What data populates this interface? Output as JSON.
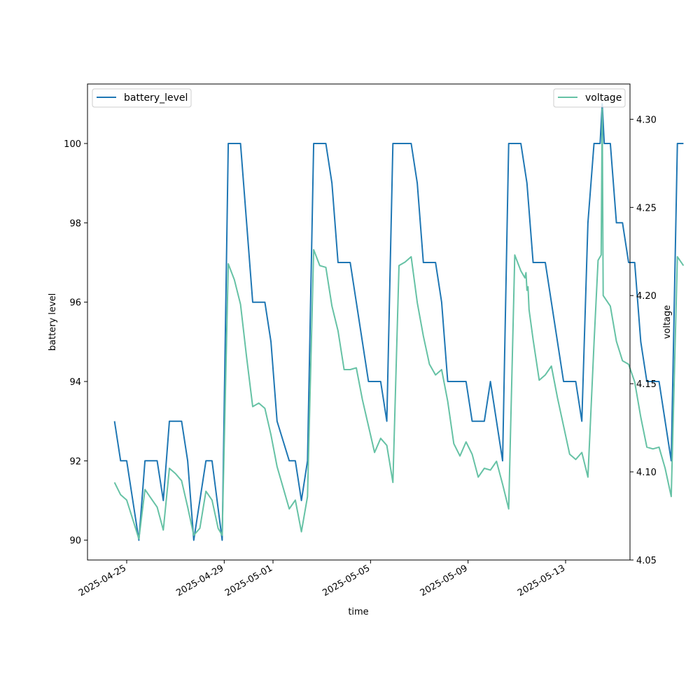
{
  "chart_data": {
    "type": "line",
    "xlabel": "time",
    "ylabel_left": "battery level",
    "ylabel_right": "voltage",
    "x_ticks": [
      "2025-04-25",
      "2025-04-29",
      "2025-05-01",
      "2025-05-05",
      "2025-05-09",
      "2025-05-13"
    ],
    "ylim_left": [
      89.5,
      101.5
    ],
    "y_ticks_left": [
      90,
      92,
      94,
      96,
      98,
      100
    ],
    "ylim_right": [
      4.05,
      4.32
    ],
    "y_ticks_right": [
      4.05,
      4.1,
      4.15,
      4.2,
      4.25,
      4.3
    ],
    "y_tick_labels_right": [
      "4.05",
      "4.10",
      "4.15",
      "4.20",
      "4.25",
      "4.30"
    ],
    "grid": false,
    "series": [
      {
        "name": "battery_level",
        "axis": "left",
        "color": "#1f77b4",
        "legend_position": "upper-left",
        "points": [
          [
            "2025-04-24 12:00",
            93
          ],
          [
            "2025-04-24 18:00",
            92
          ],
          [
            "2025-04-25 00:00",
            92
          ],
          [
            "2025-04-25 06:00",
            91
          ],
          [
            "2025-04-25 12:00",
            90
          ],
          [
            "2025-04-25 18:00",
            92
          ],
          [
            "2025-04-26 00:00",
            92
          ],
          [
            "2025-04-26 06:00",
            92
          ],
          [
            "2025-04-26 12:00",
            91
          ],
          [
            "2025-04-26 18:00",
            93
          ],
          [
            "2025-04-27 00:00",
            93
          ],
          [
            "2025-04-27 06:00",
            93
          ],
          [
            "2025-04-27 12:00",
            92
          ],
          [
            "2025-04-27 18:00",
            90
          ],
          [
            "2025-04-28 00:00",
            91
          ],
          [
            "2025-04-28 06:00",
            92
          ],
          [
            "2025-04-28 12:00",
            92
          ],
          [
            "2025-04-28 22:00",
            90
          ],
          [
            "2025-04-29 04:00",
            100
          ],
          [
            "2025-04-29 10:00",
            100
          ],
          [
            "2025-04-29 16:00",
            100
          ],
          [
            "2025-04-29 22:00",
            98
          ],
          [
            "2025-04-30 04:00",
            96
          ],
          [
            "2025-04-30 10:00",
            96
          ],
          [
            "2025-04-30 16:00",
            96
          ],
          [
            "2025-04-30 22:00",
            95
          ],
          [
            "2025-05-01 04:00",
            93
          ],
          [
            "2025-05-01 10:00",
            92.5
          ],
          [
            "2025-05-01 16:00",
            92
          ],
          [
            "2025-05-01 22:00",
            92
          ],
          [
            "2025-05-02 04:00",
            91
          ],
          [
            "2025-05-02 10:00",
            92
          ],
          [
            "2025-05-02 16:00",
            100
          ],
          [
            "2025-05-02 22:00",
            100
          ],
          [
            "2025-05-03 04:00",
            100
          ],
          [
            "2025-05-03 10:00",
            99
          ],
          [
            "2025-05-03 16:00",
            97
          ],
          [
            "2025-05-03 22:00",
            97
          ],
          [
            "2025-05-04 04:00",
            97
          ],
          [
            "2025-05-04 10:00",
            96
          ],
          [
            "2025-05-04 16:00",
            95
          ],
          [
            "2025-05-04 22:00",
            94
          ],
          [
            "2025-05-05 04:00",
            94
          ],
          [
            "2025-05-05 10:00",
            94
          ],
          [
            "2025-05-05 16:00",
            93
          ],
          [
            "2025-05-05 22:00",
            100
          ],
          [
            "2025-05-06 04:00",
            100
          ],
          [
            "2025-05-06 10:00",
            100
          ],
          [
            "2025-05-06 16:00",
            100
          ],
          [
            "2025-05-06 22:00",
            99
          ],
          [
            "2025-05-07 04:00",
            97
          ],
          [
            "2025-05-07 10:00",
            97
          ],
          [
            "2025-05-07 16:00",
            97
          ],
          [
            "2025-05-07 22:00",
            96
          ],
          [
            "2025-05-08 04:00",
            94
          ],
          [
            "2025-05-08 10:00",
            94
          ],
          [
            "2025-05-08 16:00",
            94
          ],
          [
            "2025-05-08 22:00",
            94
          ],
          [
            "2025-05-09 04:00",
            93
          ],
          [
            "2025-05-09 10:00",
            93
          ],
          [
            "2025-05-09 16:00",
            93
          ],
          [
            "2025-05-09 22:00",
            94
          ],
          [
            "2025-05-10 04:00",
            93
          ],
          [
            "2025-05-10 10:00",
            92
          ],
          [
            "2025-05-10 16:00",
            100
          ],
          [
            "2025-05-10 22:00",
            100
          ],
          [
            "2025-05-11 04:00",
            100
          ],
          [
            "2025-05-11 10:00",
            99
          ],
          [
            "2025-05-11 16:00",
            97
          ],
          [
            "2025-05-11 22:00",
            97
          ],
          [
            "2025-05-12 04:00",
            97
          ],
          [
            "2025-05-12 10:00",
            96
          ],
          [
            "2025-05-12 16:00",
            95
          ],
          [
            "2025-05-12 22:00",
            94
          ],
          [
            "2025-05-13 04:00",
            94
          ],
          [
            "2025-05-13 10:00",
            94
          ],
          [
            "2025-05-13 16:00",
            93
          ],
          [
            "2025-05-13 22:00",
            98
          ],
          [
            "2025-05-14 04:00",
            100
          ],
          [
            "2025-05-14 10:00",
            100
          ],
          [
            "2025-05-14 12:00",
            101
          ],
          [
            "2025-05-14 14:00",
            100
          ],
          [
            "2025-05-14 20:00",
            100
          ],
          [
            "2025-05-15 02:00",
            98
          ],
          [
            "2025-05-15 08:00",
            98
          ],
          [
            "2025-05-15 14:00",
            97
          ],
          [
            "2025-05-15 20:00",
            97
          ],
          [
            "2025-05-16 02:00",
            95
          ],
          [
            "2025-05-16 08:00",
            94
          ],
          [
            "2025-05-16 14:00",
            94
          ],
          [
            "2025-05-16 20:00",
            94
          ],
          [
            "2025-05-17 02:00",
            93
          ],
          [
            "2025-05-17 08:00",
            92
          ],
          [
            "2025-05-17 14:00",
            100
          ],
          [
            "2025-05-17 20:00",
            100
          ]
        ]
      },
      {
        "name": "voltage",
        "axis": "right",
        "color": "#66c2a5",
        "legend_position": "upper-right",
        "points": [
          [
            "2025-04-24 12:00",
            4.094
          ],
          [
            "2025-04-24 18:00",
            4.087
          ],
          [
            "2025-04-25 00:00",
            4.084
          ],
          [
            "2025-04-25 06:00",
            4.073
          ],
          [
            "2025-04-25 12:00",
            4.062
          ],
          [
            "2025-04-25 18:00",
            4.09
          ],
          [
            "2025-04-26 00:00",
            4.085
          ],
          [
            "2025-04-26 06:00",
            4.08
          ],
          [
            "2025-04-26 12:00",
            4.067
          ],
          [
            "2025-04-26 18:00",
            4.102
          ],
          [
            "2025-04-27 00:00",
            4.099
          ],
          [
            "2025-04-27 06:00",
            4.095
          ],
          [
            "2025-04-27 12:00",
            4.08
          ],
          [
            "2025-04-27 18:00",
            4.064
          ],
          [
            "2025-04-28 00:00",
            4.068
          ],
          [
            "2025-04-28 06:00",
            4.089
          ],
          [
            "2025-04-28 12:00",
            4.084
          ],
          [
            "2025-04-28 18:00",
            4.068
          ],
          [
            "2025-04-28 22:00",
            4.064
          ],
          [
            "2025-04-29 04:00",
            4.218
          ],
          [
            "2025-04-29 10:00",
            4.209
          ],
          [
            "2025-04-29 16:00",
            4.195
          ],
          [
            "2025-04-29 22:00",
            4.165
          ],
          [
            "2025-04-30 04:00",
            4.137
          ],
          [
            "2025-04-30 10:00",
            4.139
          ],
          [
            "2025-04-30 16:00",
            4.136
          ],
          [
            "2025-04-30 22:00",
            4.121
          ],
          [
            "2025-05-01 04:00",
            4.103
          ],
          [
            "2025-05-01 10:00",
            4.091
          ],
          [
            "2025-05-01 16:00",
            4.079
          ],
          [
            "2025-05-01 22:00",
            4.084
          ],
          [
            "2025-05-02 04:00",
            4.066
          ],
          [
            "2025-05-02 10:00",
            4.086
          ],
          [
            "2025-05-02 16:00",
            4.226
          ],
          [
            "2025-05-02 22:00",
            4.217
          ],
          [
            "2025-05-03 04:00",
            4.216
          ],
          [
            "2025-05-03 10:00",
            4.194
          ],
          [
            "2025-05-03 16:00",
            4.18
          ],
          [
            "2025-05-03 22:00",
            4.158
          ],
          [
            "2025-05-04 04:00",
            4.158
          ],
          [
            "2025-05-04 10:00",
            4.159
          ],
          [
            "2025-05-04 16:00",
            4.141
          ],
          [
            "2025-05-04 22:00",
            4.126
          ],
          [
            "2025-05-05 04:00",
            4.111
          ],
          [
            "2025-05-05 10:00",
            4.119
          ],
          [
            "2025-05-05 16:00",
            4.115
          ],
          [
            "2025-05-05 22:00",
            4.094
          ],
          [
            "2025-05-06 04:00",
            4.217
          ],
          [
            "2025-05-06 10:00",
            4.219
          ],
          [
            "2025-05-06 16:00",
            4.222
          ],
          [
            "2025-05-06 22:00",
            4.196
          ],
          [
            "2025-05-07 04:00",
            4.177
          ],
          [
            "2025-05-07 10:00",
            4.161
          ],
          [
            "2025-05-07 16:00",
            4.155
          ],
          [
            "2025-05-07 22:00",
            4.158
          ],
          [
            "2025-05-08 04:00",
            4.14
          ],
          [
            "2025-05-08 10:00",
            4.116
          ],
          [
            "2025-05-08 16:00",
            4.109
          ],
          [
            "2025-05-08 22:00",
            4.117
          ],
          [
            "2025-05-09 04:00",
            4.11
          ],
          [
            "2025-05-09 10:00",
            4.097
          ],
          [
            "2025-05-09 16:00",
            4.102
          ],
          [
            "2025-05-09 22:00",
            4.101
          ],
          [
            "2025-05-10 04:00",
            4.106
          ],
          [
            "2025-05-10 10:00",
            4.093
          ],
          [
            "2025-05-10 16:00",
            4.079
          ],
          [
            "2025-05-10 22:00",
            4.223
          ],
          [
            "2025-05-11 04:00",
            4.214
          ],
          [
            "2025-05-11 08:00",
            4.21
          ],
          [
            "2025-05-11 09:00",
            4.213
          ],
          [
            "2025-05-11 10:00",
            4.203
          ],
          [
            "2025-05-11 11:00",
            4.205
          ],
          [
            "2025-05-11 12:00",
            4.192
          ],
          [
            "2025-05-11 16:00",
            4.175
          ],
          [
            "2025-05-11 22:00",
            4.152
          ],
          [
            "2025-05-12 04:00",
            4.155
          ],
          [
            "2025-05-12 10:00",
            4.16
          ],
          [
            "2025-05-12 16:00",
            4.142
          ],
          [
            "2025-05-12 22:00",
            4.126
          ],
          [
            "2025-05-13 04:00",
            4.11
          ],
          [
            "2025-05-13 10:00",
            4.107
          ],
          [
            "2025-05-13 16:00",
            4.111
          ],
          [
            "2025-05-13 22:00",
            4.097
          ],
          [
            "2025-05-14 04:00",
            4.173
          ],
          [
            "2025-05-14 08:00",
            4.22
          ],
          [
            "2025-05-14 11:00",
            4.223
          ],
          [
            "2025-05-14 12:00",
            4.306
          ],
          [
            "2025-05-14 13:00",
            4.2
          ],
          [
            "2025-05-14 20:00",
            4.194
          ],
          [
            "2025-05-15 02:00",
            4.174
          ],
          [
            "2025-05-15 08:00",
            4.163
          ],
          [
            "2025-05-15 14:00",
            4.161
          ],
          [
            "2025-05-15 20:00",
            4.151
          ],
          [
            "2025-05-16 02:00",
            4.131
          ],
          [
            "2025-05-16 08:00",
            4.114
          ],
          [
            "2025-05-16 14:00",
            4.113
          ],
          [
            "2025-05-16 20:00",
            4.114
          ],
          [
            "2025-05-17 02:00",
            4.102
          ],
          [
            "2025-05-17 08:00",
            4.086
          ],
          [
            "2025-05-17 14:00",
            4.222
          ],
          [
            "2025-05-17 20:00",
            4.217
          ]
        ]
      }
    ]
  }
}
